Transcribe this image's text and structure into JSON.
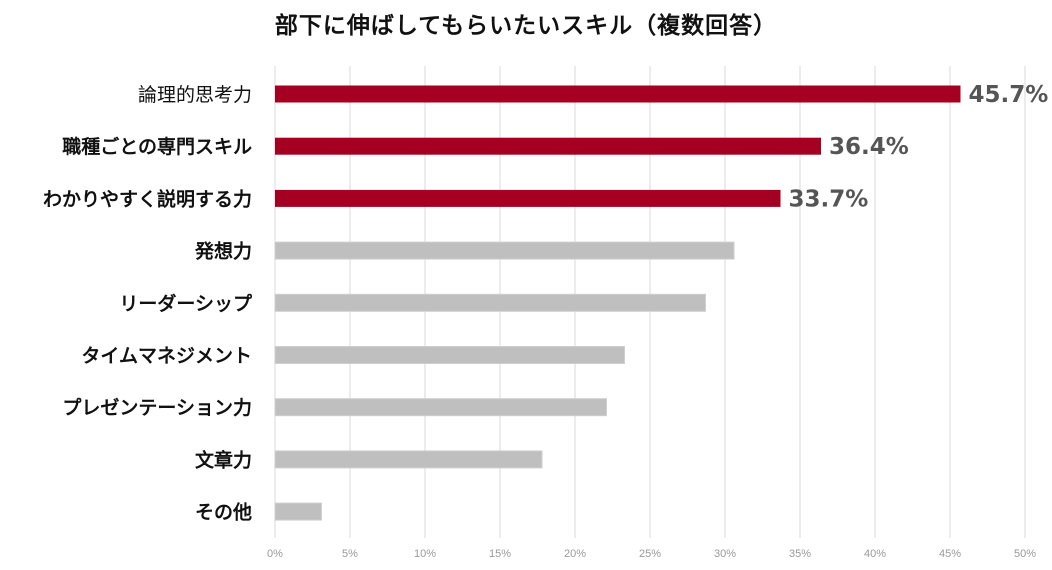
{
  "chart_data": {
    "type": "bar",
    "orientation": "horizontal",
    "title": "部下に伸ばしてもらいたいスキル（複数回答）",
    "categories": [
      "論理的思考力",
      "職種ごとの専門スキル",
      "わかりやすく説明する力",
      "発想力",
      "リーダーシップ",
      "タイムマネジメント",
      "プレゼンテーション力",
      "文章力",
      "その他"
    ],
    "values": [
      45.7,
      36.4,
      33.7,
      30.6,
      28.7,
      23.3,
      22.1,
      17.8,
      3.1
    ],
    "data_labels": [
      "45.7%",
      "36.4%",
      "33.7%",
      "",
      "",
      "",
      "",
      "",
      ""
    ],
    "x_ticks": [
      "0%",
      "5%",
      "10%",
      "15%",
      "20%",
      "25%",
      "30%",
      "35%",
      "40%",
      "45%",
      "50%"
    ],
    "xlim": [
      0,
      50
    ],
    "grid": true,
    "colors": {
      "highlight": "#a50021",
      "default": "#bfbfbf",
      "grid": "#d9d9d9",
      "data_label": "#555555"
    },
    "highlight_count": 3
  }
}
